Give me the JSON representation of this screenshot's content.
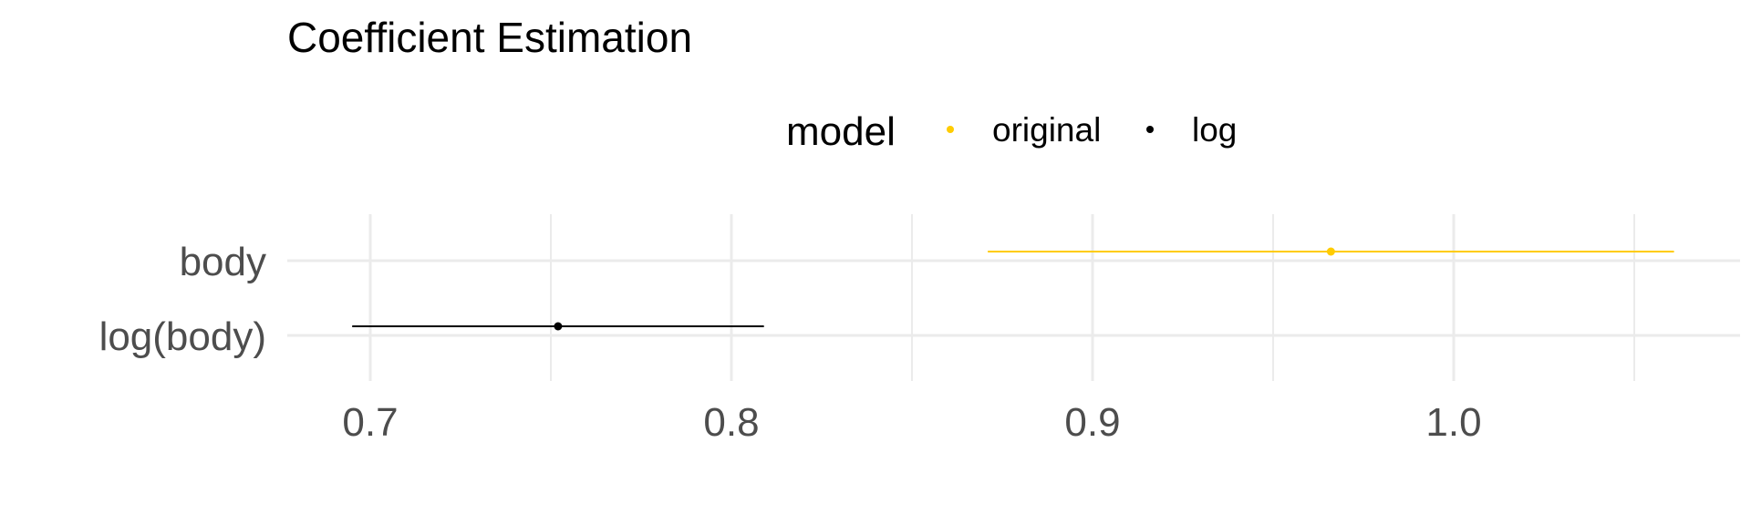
{
  "chart_data": {
    "type": "scatter",
    "title": "Coefficient Estimation",
    "xlabel": "",
    "ylabel": "",
    "xlim": [
      0.68,
      1.08
    ],
    "x_ticks": [
      0.7,
      0.8,
      0.9,
      1.0
    ],
    "x_tick_labels": [
      "0.7",
      "0.8",
      "0.9",
      "1.0"
    ],
    "x_minor_ticks": [
      0.75,
      0.85,
      0.95,
      1.05
    ],
    "categories": [
      "body",
      "log(body)"
    ],
    "grid": true,
    "legend": {
      "title": "model",
      "position": "top"
    },
    "series": [
      {
        "name": "original",
        "color": "#FFCC00",
        "category": "body",
        "estimate": 0.966,
        "lower": 0.871,
        "upper": 1.061
      },
      {
        "name": "log",
        "color": "#000000",
        "category": "log(body)",
        "estimate": 0.752,
        "lower": 0.695,
        "upper": 0.809
      }
    ]
  }
}
